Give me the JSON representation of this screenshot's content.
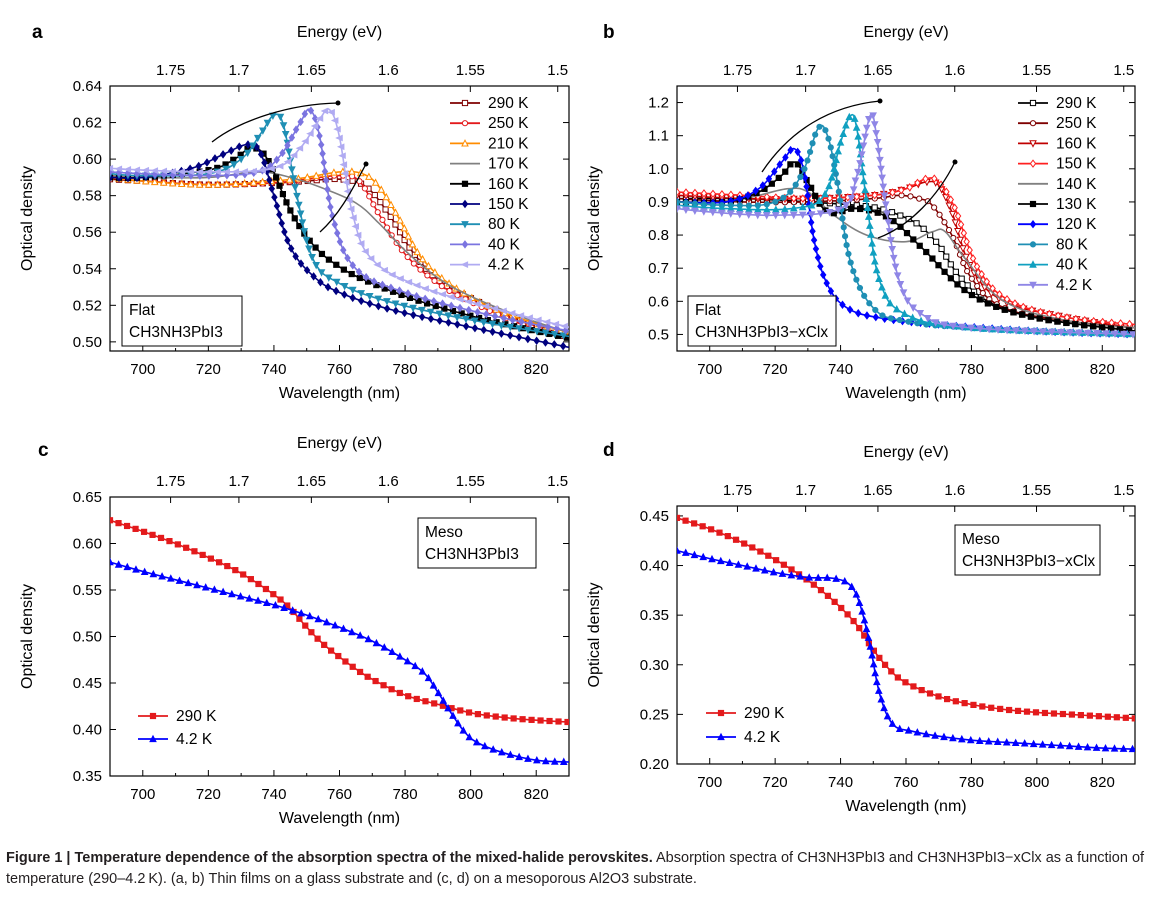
{
  "caption": {
    "prefix": "Figure 1 | Temperature dependence of the absorption spectra of the mixed-halide perovskites.",
    "body": "Absorption spectra of CH3NH3PbI3 and CH3NH3PbI3−xClx as a function of temperature (290–4.2 K). (a, b) Thin films on a glass substrate and (c, d) on a mesoporous Al2O3 substrate."
  },
  "chart_data": [
    {
      "panel": "a",
      "type": "line",
      "xlabel": "Wavelength (nm)",
      "ylabel": "Optical density",
      "top_xlabel": "Energy (eV)",
      "xlim": [
        690,
        830
      ],
      "ylim": [
        0.495,
        0.64
      ],
      "xticks": [
        700,
        720,
        740,
        760,
        780,
        800,
        820
      ],
      "yticks": [
        0.5,
        0.52,
        0.54,
        0.56,
        0.58,
        0.6,
        0.62,
        0.64
      ],
      "top_ticks": [
        1.75,
        1.7,
        1.65,
        1.6,
        1.55,
        1.5
      ],
      "annotation": [
        "Flat",
        "CH3NH3PbI3"
      ],
      "series": [
        {
          "name": "290 K",
          "color": "#7f0000",
          "marker": "sq-open",
          "x": [
            690,
            700,
            720,
            740,
            750,
            760,
            768,
            775,
            782,
            790,
            800,
            815,
            830
          ],
          "y": [
            0.589,
            0.588,
            0.586,
            0.587,
            0.588,
            0.589,
            0.585,
            0.57,
            0.55,
            0.534,
            0.524,
            0.512,
            0.502
          ]
        },
        {
          "name": "250 K",
          "color": "#e31a1c",
          "marker": "ci-open",
          "x": [
            690,
            700,
            720,
            740,
            750,
            760,
            766,
            772,
            780,
            790,
            800,
            815,
            830
          ],
          "y": [
            0.59,
            0.588,
            0.586,
            0.587,
            0.589,
            0.591,
            0.588,
            0.57,
            0.548,
            0.532,
            0.522,
            0.51,
            0.502
          ]
        },
        {
          "name": "210 K",
          "color": "#ff8c00",
          "marker": "tr-open",
          "x": [
            690,
            700,
            720,
            740,
            750,
            760,
            767,
            772,
            778,
            785,
            795,
            810,
            830
          ],
          "y": [
            0.59,
            0.588,
            0.586,
            0.588,
            0.59,
            0.593,
            0.592,
            0.585,
            0.568,
            0.546,
            0.53,
            0.516,
            0.505
          ]
        },
        {
          "name": "170 K",
          "color": "#808080",
          "marker": "none",
          "x": [
            690,
            700,
            720,
            735,
            745,
            755,
            765,
            772,
            780,
            790,
            800,
            815,
            830
          ],
          "y": [
            0.591,
            0.59,
            0.59,
            0.593,
            0.59,
            0.584,
            0.576,
            0.565,
            0.55,
            0.535,
            0.525,
            0.514,
            0.505
          ]
        },
        {
          "name": "160 K",
          "color": "#000000",
          "marker": "sq",
          "x": [
            690,
            700,
            720,
            728,
            733,
            738,
            745,
            752,
            760,
            770,
            785,
            805,
            830
          ],
          "y": [
            0.59,
            0.59,
            0.594,
            0.6,
            0.606,
            0.6,
            0.572,
            0.553,
            0.541,
            0.532,
            0.522,
            0.512,
            0.502
          ]
        },
        {
          "name": "150 K",
          "color": "#00007f",
          "marker": "di",
          "x": [
            690,
            700,
            715,
            725,
            732,
            736,
            740,
            745,
            752,
            760,
            775,
            800,
            830
          ],
          "y": [
            0.59,
            0.59,
            0.595,
            0.603,
            0.608,
            0.603,
            0.58,
            0.552,
            0.536,
            0.527,
            0.518,
            0.508,
            0.497
          ]
        },
        {
          "name": "80 K",
          "color": "#1f8fb4",
          "marker": "tr-down",
          "x": [
            690,
            700,
            720,
            730,
            736,
            740,
            743,
            747,
            752,
            760,
            775,
            800,
            830
          ],
          "y": [
            0.592,
            0.591,
            0.592,
            0.6,
            0.614,
            0.624,
            0.618,
            0.58,
            0.545,
            0.532,
            0.522,
            0.512,
            0.503
          ]
        },
        {
          "name": "40 K",
          "color": "#7b74e0",
          "marker": "di",
          "x": [
            690,
            700,
            720,
            735,
            742,
            748,
            751,
            754,
            758,
            765,
            780,
            805,
            830
          ],
          "y": [
            0.593,
            0.592,
            0.591,
            0.593,
            0.602,
            0.62,
            0.627,
            0.612,
            0.568,
            0.54,
            0.527,
            0.515,
            0.506
          ]
        },
        {
          "name": "4.2 K",
          "color": "#b0abf2",
          "marker": "lt",
          "x": [
            690,
            700,
            720,
            740,
            748,
            754,
            757,
            760,
            764,
            770,
            785,
            810,
            830
          ],
          "y": [
            0.595,
            0.594,
            0.593,
            0.595,
            0.606,
            0.622,
            0.627,
            0.612,
            0.57,
            0.545,
            0.53,
            0.517,
            0.508
          ]
        }
      ]
    },
    {
      "panel": "b",
      "type": "line",
      "xlabel": "Wavelength (nm)",
      "ylabel": "Optical density",
      "top_xlabel": "Energy (eV)",
      "xlim": [
        690,
        830
      ],
      "ylim": [
        0.45,
        1.25
      ],
      "xticks": [
        700,
        720,
        740,
        760,
        780,
        800,
        820
      ],
      "yticks": [
        0.5,
        0.6,
        0.7,
        0.8,
        0.9,
        1.0,
        1.1,
        1.2
      ],
      "top_ticks": [
        1.75,
        1.7,
        1.65,
        1.6,
        1.55,
        1.5
      ],
      "annotation": [
        "Flat",
        "CH3NH3PbI3−xClx"
      ],
      "series": [
        {
          "name": "290 K",
          "color": "#000000",
          "marker": "sq-open",
          "x": [
            690,
            710,
            730,
            745,
            752,
            758,
            764,
            770,
            776,
            785,
            800,
            830
          ],
          "y": [
            0.91,
            0.91,
            0.9,
            0.89,
            0.88,
            0.86,
            0.83,
            0.77,
            0.68,
            0.6,
            0.55,
            0.51
          ]
        },
        {
          "name": "250 K",
          "color": "#7f0000",
          "marker": "ci-open",
          "x": [
            690,
            710,
            730,
            750,
            758,
            764,
            768,
            774,
            780,
            790,
            810,
            830
          ],
          "y": [
            0.91,
            0.9,
            0.9,
            0.91,
            0.92,
            0.91,
            0.89,
            0.8,
            0.67,
            0.58,
            0.54,
            0.52
          ]
        },
        {
          "name": "160 K",
          "color": "#c00000",
          "marker": "tr-down-open",
          "x": [
            690,
            710,
            730,
            750,
            760,
            766,
            770,
            774,
            780,
            790,
            810,
            830
          ],
          "y": [
            0.92,
            0.91,
            0.91,
            0.92,
            0.94,
            0.96,
            0.95,
            0.87,
            0.7,
            0.6,
            0.55,
            0.52
          ]
        },
        {
          "name": "150 K",
          "color": "#ff2020",
          "marker": "di-open",
          "x": [
            690,
            710,
            730,
            750,
            760,
            766,
            770,
            775,
            782,
            792,
            810,
            830
          ],
          "y": [
            0.93,
            0.92,
            0.91,
            0.92,
            0.94,
            0.97,
            0.96,
            0.88,
            0.7,
            0.6,
            0.55,
            0.53
          ]
        },
        {
          "name": "140 K",
          "color": "#808080",
          "marker": "none",
          "x": [
            690,
            705,
            715,
            724,
            730,
            738,
            748,
            760,
            768,
            772,
            778,
            790,
            810,
            830
          ],
          "y": [
            0.9,
            0.9,
            0.92,
            0.94,
            0.93,
            0.86,
            0.8,
            0.78,
            0.81,
            0.81,
            0.73,
            0.6,
            0.54,
            0.52
          ]
        },
        {
          "name": "130 K",
          "color": "#000000",
          "marker": "sq",
          "x": [
            690,
            705,
            715,
            722,
            726,
            730,
            736,
            745,
            755,
            765,
            780,
            800,
            830
          ],
          "y": [
            0.9,
            0.9,
            0.93,
            0.98,
            1.02,
            0.96,
            0.87,
            0.88,
            0.85,
            0.76,
            0.62,
            0.55,
            0.51
          ]
        },
        {
          "name": "120 K",
          "color": "#0000ff",
          "marker": "di",
          "x": [
            690,
            705,
            715,
            722,
            726,
            729,
            732,
            736,
            742,
            752,
            770,
            800,
            830
          ],
          "y": [
            0.9,
            0.9,
            0.94,
            1.02,
            1.06,
            0.98,
            0.78,
            0.65,
            0.58,
            0.55,
            0.53,
            0.51,
            0.5
          ]
        },
        {
          "name": "80 K",
          "color": "#1f8fb4",
          "marker": "ci",
          "x": [
            690,
            705,
            720,
            728,
            733,
            736,
            739,
            743,
            750,
            760,
            780,
            830
          ],
          "y": [
            0.9,
            0.89,
            0.9,
            0.98,
            1.12,
            1.1,
            0.96,
            0.72,
            0.58,
            0.54,
            0.52,
            0.5
          ]
        },
        {
          "name": "40 K",
          "color": "#10a0c0",
          "marker": "tr",
          "x": [
            690,
            705,
            725,
            735,
            740,
            743,
            745,
            748,
            752,
            760,
            780,
            830
          ],
          "y": [
            0.89,
            0.88,
            0.88,
            0.92,
            1.08,
            1.16,
            1.12,
            0.9,
            0.66,
            0.56,
            0.52,
            0.5
          ]
        },
        {
          "name": "4.2 K",
          "color": "#8f86e6",
          "marker": "tr-down",
          "x": [
            690,
            700,
            720,
            740,
            745,
            749,
            751,
            754,
            758,
            765,
            780,
            830
          ],
          "y": [
            0.88,
            0.87,
            0.86,
            0.88,
            0.98,
            1.16,
            1.1,
            0.88,
            0.66,
            0.56,
            0.52,
            0.5
          ]
        }
      ]
    },
    {
      "panel": "c",
      "type": "line",
      "xlabel": "Wavelength (nm)",
      "ylabel": "Optical density",
      "top_xlabel": "Energy (eV)",
      "xlim": [
        690,
        830
      ],
      "ylim": [
        0.35,
        0.65
      ],
      "xticks": [
        700,
        720,
        740,
        760,
        780,
        800,
        820
      ],
      "yticks": [
        0.35,
        0.4,
        0.45,
        0.5,
        0.55,
        0.6,
        0.65
      ],
      "top_ticks": [
        1.75,
        1.7,
        1.65,
        1.6,
        1.55,
        1.5
      ],
      "annotation": [
        "Meso",
        "CH3NH3PbI3"
      ],
      "series": [
        {
          "name": "290 K",
          "color": "#e31a1c",
          "marker": "sq",
          "x": [
            690,
            700,
            710,
            720,
            730,
            740,
            745,
            750,
            755,
            760,
            765,
            770,
            780,
            790,
            800,
            810,
            820,
            830
          ],
          "y": [
            0.625,
            0.613,
            0.6,
            0.585,
            0.568,
            0.545,
            0.53,
            0.51,
            0.492,
            0.478,
            0.465,
            0.454,
            0.437,
            0.427,
            0.418,
            0.413,
            0.41,
            0.408
          ]
        },
        {
          "name": "4.2 K",
          "color": "#0000ff",
          "marker": "tr",
          "x": [
            690,
            700,
            710,
            720,
            730,
            740,
            750,
            760,
            770,
            780,
            786,
            790,
            794,
            798,
            802,
            810,
            820,
            830
          ],
          "y": [
            0.58,
            0.57,
            0.561,
            0.552,
            0.543,
            0.534,
            0.523,
            0.51,
            0.495,
            0.475,
            0.46,
            0.44,
            0.418,
            0.398,
            0.386,
            0.375,
            0.367,
            0.365
          ]
        }
      ]
    },
    {
      "panel": "d",
      "type": "line",
      "xlabel": "Wavelength (nm)",
      "ylabel": "Optical density",
      "top_xlabel": "Energy (eV)",
      "xlim": [
        690,
        830
      ],
      "ylim": [
        0.2,
        0.46
      ],
      "xticks": [
        700,
        720,
        740,
        760,
        780,
        800,
        820
      ],
      "yticks": [
        0.2,
        0.25,
        0.3,
        0.35,
        0.4,
        0.45
      ],
      "top_ticks": [
        1.75,
        1.7,
        1.65,
        1.6,
        1.55,
        1.5
      ],
      "annotation": [
        "Meso",
        "CH3NH3PbI3−xClx"
      ],
      "series": [
        {
          "name": "290 K",
          "color": "#e31a1c",
          "marker": "sq",
          "x": [
            690,
            700,
            710,
            720,
            730,
            738,
            745,
            750,
            755,
            760,
            770,
            780,
            790,
            800,
            810,
            820,
            830
          ],
          "y": [
            0.448,
            0.437,
            0.423,
            0.406,
            0.385,
            0.364,
            0.34,
            0.315,
            0.295,
            0.282,
            0.268,
            0.26,
            0.255,
            0.252,
            0.25,
            0.248,
            0.246
          ]
        },
        {
          "name": "4.2 K",
          "color": "#0000ff",
          "marker": "tr",
          "x": [
            690,
            700,
            710,
            720,
            730,
            738,
            743,
            746,
            749,
            752,
            756,
            762,
            770,
            780,
            790,
            800,
            810,
            820,
            830
          ],
          "y": [
            0.415,
            0.407,
            0.4,
            0.393,
            0.388,
            0.387,
            0.38,
            0.36,
            0.32,
            0.27,
            0.24,
            0.233,
            0.228,
            0.224,
            0.222,
            0.22,
            0.218,
            0.216,
            0.215
          ]
        }
      ]
    }
  ]
}
